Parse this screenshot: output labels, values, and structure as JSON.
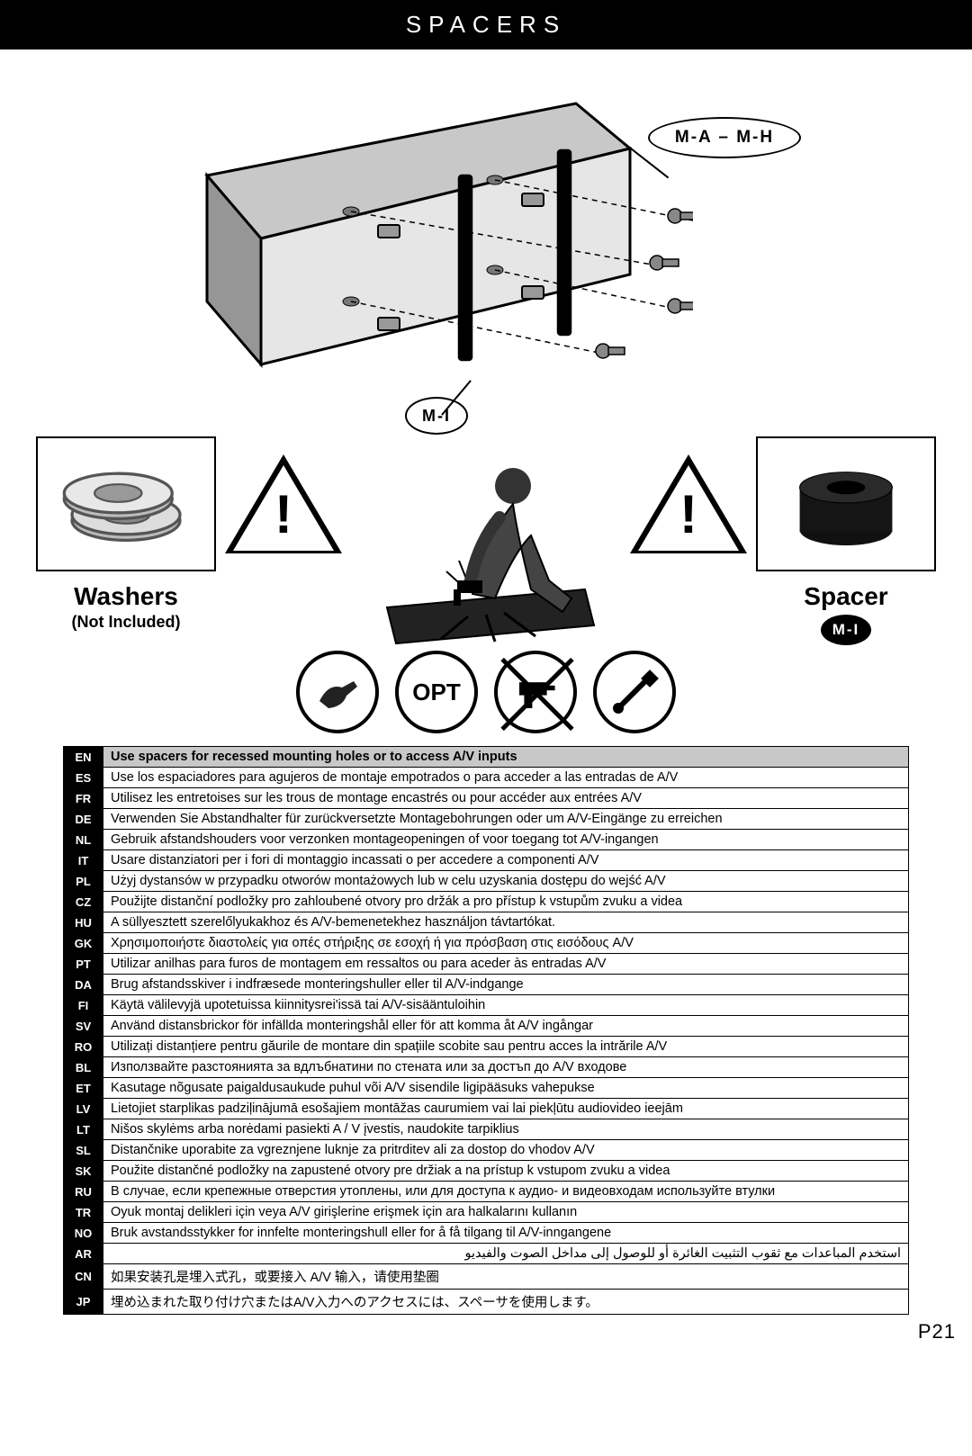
{
  "header": "SPACERS",
  "callouts": {
    "top": "M-A – M-H",
    "bottom": "M-I"
  },
  "left_part": {
    "title": "Washers",
    "subtitle": "(Not Included)"
  },
  "right_part": {
    "title": "Spacer",
    "badge": "M-I"
  },
  "icon_opt_label": "OPT",
  "page_number": "P21",
  "colors": {
    "black": "#000000",
    "white": "#ffffff",
    "grey_row": "#c8c8c8"
  },
  "lang_rows": [
    {
      "code": "EN",
      "text": "Use spacers for recessed mounting holes or to access A/V inputs",
      "hl": true
    },
    {
      "code": "ES",
      "text": "Use los espaciadores para agujeros de montaje empotrados o para acceder a las entradas de A/V"
    },
    {
      "code": "FR",
      "text": "Utilisez les entretoises sur les trous de montage encastrés ou pour accéder aux entrées A/V"
    },
    {
      "code": "DE",
      "text": "Verwenden Sie Abstandhalter für zurückversetzte Montagebohrungen oder um A/V-Eingänge zu erreichen"
    },
    {
      "code": "NL",
      "text": "Gebruik afstandshouders voor verzonken montageopeningen of voor toegang tot A/V-ingangen"
    },
    {
      "code": "IT",
      "text": "Usare distanziatori per i fori di montaggio incassati o per accedere a componenti A/V"
    },
    {
      "code": "PL",
      "text": "Użyj dystansów w przypadku otworów montażowych lub w celu uzyskania dostępu do wejść A/V"
    },
    {
      "code": "CZ",
      "text": "Použijte distanční podložky pro zahloubené otvory pro držák a pro přístup k vstupům zvuku a videa"
    },
    {
      "code": "HU",
      "text": "A süllyesztett szerelőlyukakhoz és A/V-bemenetekhez használjon távtartókat."
    },
    {
      "code": "GK",
      "text": "Χρησιμοποιήστε διαστολείς για οπές στήριξης σε εσοχή ή για πρόσβαση στις εισόδους A/V"
    },
    {
      "code": "PT",
      "text": "Utilizar anilhas para furos de montagem em ressaltos ou para aceder às entradas A/V"
    },
    {
      "code": "DA",
      "text": "Brug afstandsskiver i indfræsede monteringshuller eller til A/V-indgange"
    },
    {
      "code": "FI",
      "text": "Käytä välilevyjä upotetuissa kiinnitysrei'issä tai A/V-sisääntuloihin"
    },
    {
      "code": "SV",
      "text": "Använd distansbrickor för infällda monteringshål eller för att komma åt A/V ingångar"
    },
    {
      "code": "RO",
      "text": "Utilizați distanțiere pentru găurile de montare din spațiile scobite sau pentru acces la intrările A/V"
    },
    {
      "code": "BL",
      "text": "Използвайте разстоянията за вдлъбнатини по стената или за достъп до A/V входове"
    },
    {
      "code": "ET",
      "text": "Kasutage nõgusate paigaldusaukude puhul või A/V sisendile ligipääsuks vahepukse"
    },
    {
      "code": "LV",
      "text": "Lietojiet starplikas padziļinājumā esošajiem montāžas caurumiem vai lai piekļūtu audiovideo ieejām"
    },
    {
      "code": "LT",
      "text": "Nišos skylėms arba norėdami pasiekti A / V įvestis, naudokite tarpiklius"
    },
    {
      "code": "SL",
      "text": "Distančnike uporabite za vgreznjene luknje za pritrditev ali za dostop do vhodov A/V"
    },
    {
      "code": "SK",
      "text": "Použite distančné podložky na zapustené otvory pre držiak a na prístup k vstupom zvuku a videa"
    },
    {
      "code": "RU",
      "text": "В случае, если крепежные отверстия утоплены, или для доступа к аудио- и видеовходам используйте втулки"
    },
    {
      "code": "TR",
      "text": "Oyuk montaj delikleri için veya A/V girişlerine erişmek için ara halkalarını kullanın"
    },
    {
      "code": "NO",
      "text": "Bruk avstandsstykker for innfelte monteringshull eller for å få tilgang til A/V-inngangene"
    },
    {
      "code": "AR",
      "text": "استخدم المباعدات مع ثقوب التثبيت الغائرة أو للوصول إلى مداخل الصوت والفيديو",
      "rtl": true
    },
    {
      "code": "CN",
      "text": "如果安装孔是埋入式孔，或要接入 A/V 输入，请使用垫圈"
    },
    {
      "code": "JP",
      "text": "埋め込まれた取り付け穴またはA/V入力へのアクセスには、スペーサを使用します。"
    }
  ]
}
